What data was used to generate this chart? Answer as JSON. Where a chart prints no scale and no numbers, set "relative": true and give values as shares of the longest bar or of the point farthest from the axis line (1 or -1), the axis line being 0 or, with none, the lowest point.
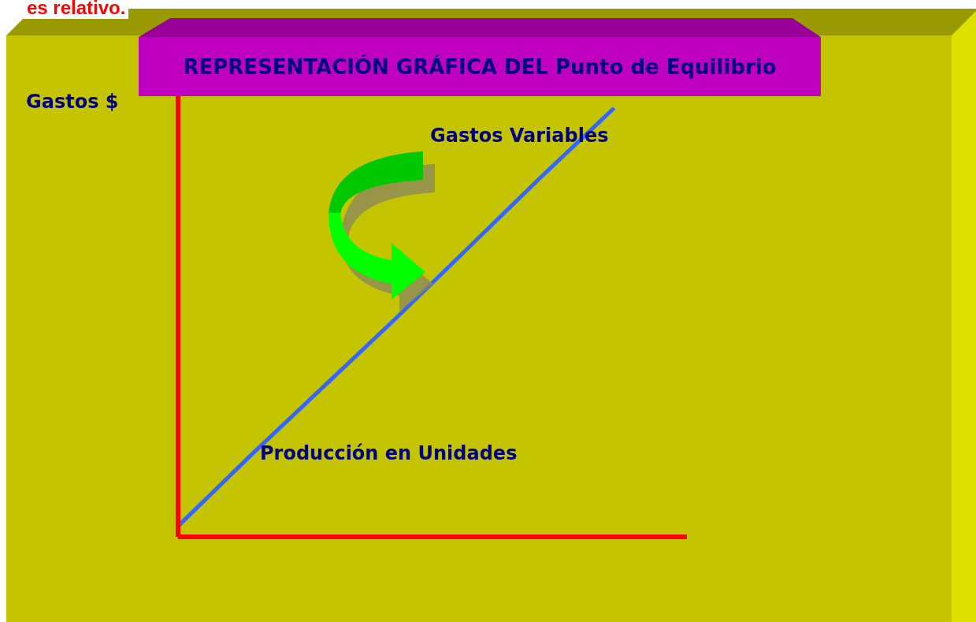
{
  "chart_data": {
    "type": "line",
    "relative": true,
    "title": "REPRESENTACIÓN GRÁFICA DEL Punto de Equilibrio",
    "xlabel": "Producción en Unidades",
    "ylabel": "Gastos $",
    "annotations": [
      "es relativo."
    ],
    "categories": [
      null,
      null,
      null,
      null,
      null,
      null,
      null,
      null
    ],
    "series": [
      {
        "name": "Gastos Variables",
        "color": "#3366ff",
        "values": [
          0.025,
          0.19,
          0.35,
          0.51,
          0.675,
          0.84,
          1,
          null
        ]
      }
    ]
  }
}
